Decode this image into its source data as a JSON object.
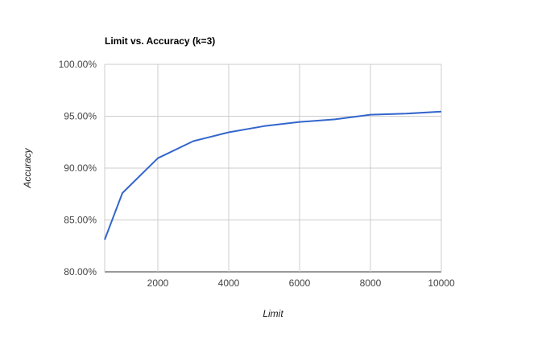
{
  "chart_data": {
    "type": "line",
    "title": "Limit vs. Accuracy (k=3)",
    "xlabel": "Limit",
    "ylabel": "Accuracy",
    "xlim": [
      500,
      10000
    ],
    "ylim": [
      80,
      100
    ],
    "x_ticks": [
      2000,
      4000,
      6000,
      8000,
      10000
    ],
    "x_tick_labels": [
      "2000",
      "4000",
      "6000",
      "8000",
      "10000"
    ],
    "y_ticks": [
      80,
      85,
      90,
      95,
      100
    ],
    "y_tick_labels": [
      "80.00%",
      "85.00%",
      "90.00%",
      "95.00%",
      "100.00%"
    ],
    "grid": true,
    "legend": "none",
    "series": [
      {
        "color": "#3366cc",
        "x": [
          500,
          1000,
          2000,
          3000,
          4000,
          5000,
          6000,
          7000,
          8000,
          9000,
          10000
        ],
        "y": [
          83.1,
          87.6,
          90.95,
          92.6,
          93.45,
          94.05,
          94.45,
          94.7,
          95.15,
          95.25,
          95.45
        ]
      }
    ]
  }
}
